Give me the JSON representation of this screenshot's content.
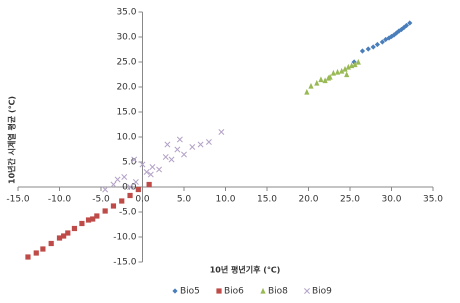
{
  "chart_data": {
    "type": "scatter",
    "x_label": "10년 평년기후 (℃)",
    "y_label": "10년간 시계열 평균 (℃)",
    "xlim": [
      -15,
      35
    ],
    "ylim": [
      -15,
      35
    ],
    "xticks": [
      {
        "value": -15,
        "label": "-15.0"
      },
      {
        "value": -10,
        "label": "-10.0"
      },
      {
        "value": -5,
        "label": "-5.0"
      },
      {
        "value": 0,
        "label": "0.0"
      },
      {
        "value": 5,
        "label": "5.0"
      },
      {
        "value": 10,
        "label": "10.0"
      },
      {
        "value": 15,
        "label": "15.0"
      },
      {
        "value": 20,
        "label": "20.0"
      },
      {
        "value": 25,
        "label": "25.0"
      },
      {
        "value": 30,
        "label": "30.0"
      },
      {
        "value": 35,
        "label": "35.0"
      }
    ],
    "yticks": [
      {
        "value": -15,
        "label": "-15.0"
      },
      {
        "value": -10,
        "label": "-10.0"
      },
      {
        "value": -5,
        "label": "-5.0"
      },
      {
        "value": 0,
        "label": "0.0"
      },
      {
        "value": 5,
        "label": "5.0"
      },
      {
        "value": 10,
        "label": "10.0"
      },
      {
        "value": 15,
        "label": "15.0"
      },
      {
        "value": 20,
        "label": "20.0"
      },
      {
        "value": 25,
        "label": "25.0"
      },
      {
        "value": 30,
        "label": "30.0"
      },
      {
        "value": 35,
        "label": "35.0"
      }
    ],
    "legend": "bottom",
    "series": [
      {
        "name": "Bio5",
        "color": "#4a7ebb",
        "marker": "diamond",
        "x": [
          25.5,
          26.5,
          27.2,
          27.8,
          28.3,
          28.9,
          29.3,
          29.7,
          30.0,
          30.3,
          30.6,
          30.9,
          31.2,
          31.5,
          31.8,
          32.2
        ],
        "values": [
          25.0,
          27.2,
          27.6,
          28.0,
          28.5,
          29.0,
          29.5,
          29.8,
          30.1,
          30.4,
          30.8,
          31.2,
          31.5,
          31.9,
          32.3,
          32.8
        ]
      },
      {
        "name": "Bio6",
        "color": "#be4b48",
        "marker": "square",
        "x": [
          -13.8,
          -12.8,
          -12,
          -11,
          -10,
          -9.5,
          -9,
          -8.2,
          -7.3,
          -6.5,
          -6,
          -5.5,
          -4.5,
          -3.5,
          -2.5,
          -1.5,
          -0.5,
          0.8
        ],
        "values": [
          -14,
          -13.2,
          -12.4,
          -11.3,
          -10.2,
          -9.8,
          -9.2,
          -8.3,
          -7.3,
          -6.6,
          -6.4,
          -5.8,
          -4.8,
          -3.8,
          -2.8,
          -1.7,
          -0.5,
          0.5
        ]
      },
      {
        "name": "Bio8",
        "color": "#98b954",
        "marker": "triangle",
        "x": [
          19.8,
          20.3,
          21.0,
          21.5,
          22.0,
          22.4,
          22.6,
          23.0,
          23.5,
          24.0,
          24.4,
          24.6,
          24.8,
          25.2,
          25.6,
          26.0
        ],
        "values": [
          19.0,
          20.2,
          20.8,
          21.5,
          21.3,
          21.8,
          22.0,
          22.8,
          23.0,
          23.2,
          23.6,
          22.5,
          24.0,
          24.3,
          24.5,
          25.0
        ]
      },
      {
        "name": "Bio9",
        "color": "#b3a2c7",
        "marker": "x",
        "x": [
          -4.5,
          -3.5,
          -3,
          -2.2,
          -1.5,
          -1,
          -0.8,
          0,
          0.5,
          1,
          1.2,
          2,
          2.8,
          3,
          3.5,
          4.2,
          4.5,
          5,
          6,
          7,
          8,
          9.5
        ],
        "values": [
          -0.5,
          0.5,
          1.5,
          2,
          0,
          5.5,
          1,
          4.5,
          3,
          2.5,
          4,
          3.5,
          6,
          8.5,
          5.5,
          7.5,
          9.5,
          6.5,
          8,
          8.5,
          9,
          11
        ]
      }
    ]
  }
}
